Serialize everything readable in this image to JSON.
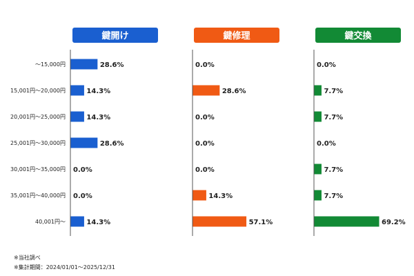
{
  "chart_data": {
    "type": "bar",
    "orientation": "horizontal",
    "categories": [
      "～15,000円",
      "15,001円～20,000円",
      "20,001円～25,000円",
      "25,001円～30,000円",
      "30,001円～35,000円",
      "35,001円～40,000円",
      "40,001円～"
    ],
    "xlim": [
      0,
      70
    ],
    "grid": false,
    "series": [
      {
        "name": "鍵開け",
        "color": "#1a5fd0",
        "values": [
          28.6,
          14.3,
          14.3,
          28.6,
          0.0,
          0.0,
          14.3
        ],
        "labels": [
          "28.6%",
          "14.3%",
          "14.3%",
          "28.6%",
          "0.0%",
          "0.0%",
          "14.3%"
        ]
      },
      {
        "name": "鍵修理",
        "color": "#f05a14",
        "values": [
          0.0,
          28.6,
          0.0,
          0.0,
          0.0,
          14.3,
          57.1
        ],
        "labels": [
          "0.0%",
          "28.6%",
          "0.0%",
          "0.0%",
          "0.0%",
          "14.3%",
          "57.1%"
        ]
      },
      {
        "name": "鍵交換",
        "color": "#128a35",
        "values": [
          0.0,
          7.7,
          7.7,
          0.0,
          7.7,
          7.7,
          69.2
        ],
        "labels": [
          "0.0%",
          "7.7%",
          "7.7%",
          "0.0%",
          "7.7%",
          "7.7%",
          "69.2%"
        ]
      }
    ]
  },
  "notes": {
    "source": "※当社調べ",
    "period": "※集計期間：2024/01/01～2025/12/31"
  }
}
